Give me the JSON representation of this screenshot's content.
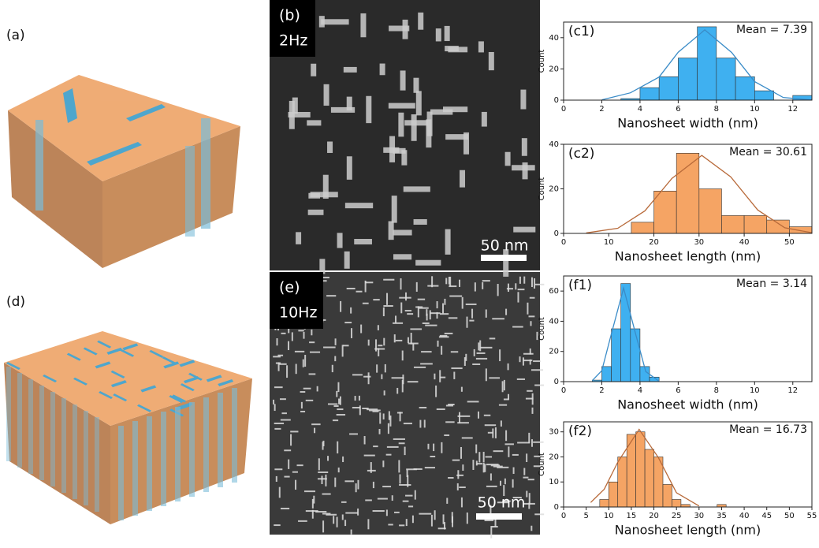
{
  "panels": {
    "a": {
      "label": "(a)"
    },
    "b": {
      "label": "(b)",
      "frequency": "2Hz",
      "scale_bar": "50 nm"
    },
    "d": {
      "label": "(d)"
    },
    "e": {
      "label": "(e)",
      "frequency": "10Hz",
      "scale_bar": "50 nm"
    }
  },
  "chart_data": [
    {
      "type": "histogram",
      "label": "(c1)",
      "annotation": "Mean = 7.39",
      "xlabel": "Nanosheet width (nm)",
      "ylabel": "Count",
      "bins": [
        3,
        4,
        5,
        6,
        7,
        8,
        9,
        10,
        11,
        12,
        13
      ],
      "values": [
        1,
        8,
        15,
        27,
        47,
        27,
        15,
        6,
        0,
        3
      ],
      "color": "#3fb0f0",
      "fit_color": "#3a8cc8",
      "fit": {
        "x": [
          2,
          3.5,
          5,
          6,
          7.39,
          8.8,
          10,
          11.5,
          13
        ],
        "values": [
          0.2,
          4.7,
          14.8,
          30.7,
          45,
          30.5,
          11.9,
          1.7,
          0.1
        ]
      },
      "xlim": [
        0,
        13
      ],
      "ylim": [
        0,
        50
      ],
      "xticks": [
        0,
        2,
        4,
        6,
        8,
        10,
        12
      ],
      "yticks": [
        0,
        20,
        40
      ]
    },
    {
      "type": "histogram",
      "label": "(c2)",
      "annotation": "Mean = 30.61",
      "xlabel": "Nanosheet length (nm)",
      "ylabel": "Count",
      "bins": [
        15,
        20,
        25,
        30,
        35,
        40,
        45,
        50,
        55
      ],
      "values": [
        5,
        19,
        36,
        20,
        8,
        8,
        6,
        3
      ],
      "color": "#f5a464",
      "fit_color": "#b86a3a",
      "fit": {
        "x": [
          5,
          12,
          18,
          24,
          30.61,
          37,
          43,
          49,
          55
        ],
        "values": [
          0.2,
          2.3,
          10.1,
          24.7,
          35,
          25.4,
          10.5,
          2.5,
          0.3
        ]
      },
      "xlim": [
        0,
        55
      ],
      "ylim": [
        0,
        40
      ],
      "xticks": [
        0,
        10,
        20,
        30,
        40,
        50
      ],
      "yticks": [
        0,
        20,
        40
      ]
    },
    {
      "type": "histogram",
      "label": "(f1)",
      "annotation": "Mean = 3.14",
      "xlabel": "Nanosheet width (nm)",
      "ylabel": "Count",
      "bins": [
        1.5,
        2,
        2.5,
        3,
        3.5,
        4,
        4.5,
        5
      ],
      "values": [
        1,
        10,
        35,
        65,
        35,
        10,
        3
      ],
      "color": "#3fb0f0",
      "fit_color": "#3a8cc8",
      "fit": {
        "x": [
          1.5,
          2,
          2.5,
          3.14,
          3.8,
          4.3,
          5
        ],
        "values": [
          0.7,
          7.3,
          31.6,
          62,
          30.2,
          6.7,
          0.2
        ]
      },
      "xlim": [
        0,
        13
      ],
      "ylim": [
        0,
        70
      ],
      "xticks": [
        0,
        2,
        4,
        6,
        8,
        10,
        12
      ],
      "yticks": [
        0,
        20,
        40,
        60
      ]
    },
    {
      "type": "histogram",
      "label": "(f2)",
      "annotation": "Mean = 16.73",
      "xlabel": "Nanosheet length (nm)",
      "ylabel": "Count",
      "bins": [
        8,
        10,
        12,
        14,
        16,
        18,
        20,
        22,
        24,
        26,
        28,
        30,
        32,
        34,
        36
      ],
      "values": [
        3,
        10,
        20,
        29,
        30,
        23,
        20,
        9,
        3,
        1,
        0,
        0,
        0,
        1
      ],
      "color": "#f5a464",
      "fit_color": "#b86a3a",
      "fit": {
        "x": [
          6,
          9,
          12,
          16.73,
          21,
          25,
          30
        ],
        "values": [
          1.8,
          7.1,
          17.9,
          31,
          19.7,
          5.7,
          0.4
        ]
      },
      "xlim": [
        0,
        55
      ],
      "ylim": [
        0,
        34
      ],
      "xticks": [
        0,
        5,
        10,
        15,
        20,
        25,
        30,
        35,
        40,
        45,
        50,
        55
      ],
      "yticks": [
        0,
        10,
        20,
        30
      ]
    }
  ]
}
